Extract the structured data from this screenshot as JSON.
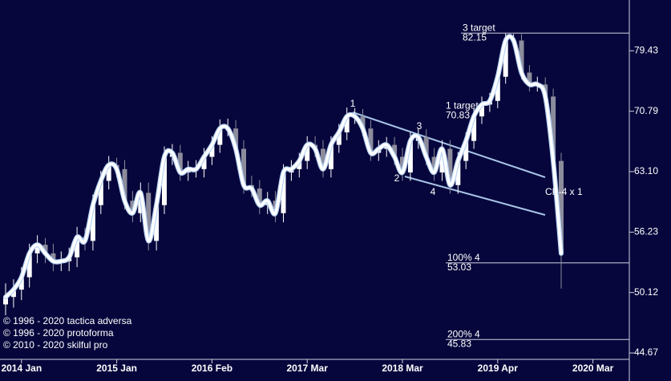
{
  "chart_data": {
    "type": "candlestick",
    "categories": [
      null,
      null,
      "2014 Jan",
      null,
      null,
      null,
      null,
      null,
      null,
      null,
      null,
      null,
      null,
      null,
      "2015 Jan",
      null,
      null,
      null,
      null,
      null,
      null,
      null,
      null,
      null,
      null,
      null,
      "2016 Feb",
      null,
      null,
      null,
      null,
      null,
      null,
      null,
      null,
      null,
      null,
      null,
      "2017 Mar",
      null,
      null,
      null,
      null,
      null,
      null,
      null,
      null,
      null,
      null,
      null,
      "2018 Mar",
      null,
      null,
      null,
      null,
      null,
      null,
      null,
      null,
      null,
      null,
      null,
      "2019 Apr",
      null,
      null,
      null,
      null,
      null,
      null,
      null,
      null,
      null,
      null,
      null,
      "2020 Mar",
      null,
      null
    ],
    "open": [
      49.0,
      49.7,
      50.4,
      51.6,
      54.0,
      54.9,
      54.0,
      53.2,
      53.2,
      53.6,
      55.7,
      55.3,
      59.2,
      62.0,
      63.9,
      63.4,
      59.7,
      58.3,
      60.6,
      55.3,
      59.2,
      64.9,
      65.4,
      63.0,
      63.4,
      63.4,
      64.9,
      66.4,
      68.5,
      68.5,
      65.9,
      61.5,
      61.1,
      59.2,
      59.7,
      58.3,
      63.0,
      63.4,
      64.4,
      66.4,
      65.9,
      63.4,
      66.4,
      68.0,
      70.1,
      70.1,
      68.5,
      65.4,
      65.9,
      66.4,
      64.9,
      63.0,
      66.9,
      67.4,
      64.9,
      63.0,
      65.9,
      61.5,
      64.4,
      66.9,
      70.1,
      71.7,
      72.2,
      75.6,
      81.0,
      81.0,
      76.2,
      74.5,
      74.5,
      72.8,
      64.4,
      null,
      null,
      null,
      null,
      null,
      null
    ],
    "high": [
      51.0,
      51.4,
      52.6,
      55.0,
      55.9,
      55.6,
      55.0,
      54.2,
      54.6,
      56.8,
      56.7,
      60.4,
      63.2,
      65.0,
      64.8,
      64.5,
      60.8,
      61.8,
      61.8,
      60.4,
      66.2,
      66.5,
      66.4,
      64.4,
      64.5,
      66.0,
      67.5,
      69.7,
      69.8,
      69.6,
      67.0,
      62.6,
      62.1,
      60.7,
      60.8,
      64.0,
      64.5,
      65.4,
      67.5,
      67.5,
      67.0,
      67.5,
      69.1,
      71.3,
      71.2,
      71.1,
      69.6,
      67.0,
      67.4,
      67.4,
      66.0,
      68.0,
      68.5,
      68.4,
      66.0,
      67.0,
      67.0,
      65.5,
      68.0,
      71.2,
      72.8,
      73.3,
      76.8,
      82.1,
      82.0,
      82.0,
      77.3,
      75.6,
      75.5,
      73.9,
      65.4,
      null,
      null,
      null,
      null,
      null,
      null
    ],
    "low": [
      48.0,
      48.7,
      49.4,
      50.6,
      53.0,
      53.0,
      52.2,
      52.2,
      52.2,
      52.6,
      54.3,
      54.3,
      58.2,
      61.0,
      62.4,
      58.7,
      57.3,
      57.3,
      54.3,
      54.3,
      58.2,
      63.9,
      62.0,
      62.0,
      62.4,
      62.4,
      63.9,
      65.4,
      67.5,
      64.9,
      60.5,
      60.1,
      58.2,
      58.2,
      57.3,
      57.3,
      62.0,
      62.4,
      63.4,
      64.9,
      62.4,
      62.4,
      65.4,
      67.0,
      69.1,
      67.5,
      64.4,
      64.4,
      64.9,
      63.9,
      62.0,
      62.0,
      65.9,
      63.9,
      62.0,
      62.0,
      60.5,
      60.5,
      63.4,
      65.9,
      69.1,
      70.7,
      71.2,
      74.6,
      80.0,
      75.2,
      73.5,
      73.5,
      71.8,
      63.4,
      50.5,
      null,
      null,
      null,
      null,
      null,
      null
    ],
    "close": [
      49.7,
      50.4,
      51.6,
      54.0,
      54.9,
      54.0,
      53.2,
      53.2,
      53.6,
      55.7,
      55.3,
      59.2,
      62.0,
      63.9,
      63.4,
      59.7,
      58.3,
      60.6,
      55.3,
      59.2,
      64.9,
      65.4,
      63.0,
      63.4,
      63.4,
      64.9,
      66.4,
      68.5,
      68.5,
      65.9,
      61.5,
      61.1,
      59.2,
      59.7,
      58.3,
      63.0,
      63.4,
      64.4,
      66.4,
      65.9,
      63.4,
      66.4,
      68.0,
      70.1,
      70.1,
      68.5,
      65.4,
      65.9,
      66.4,
      64.9,
      63.0,
      66.9,
      67.4,
      64.9,
      63.0,
      65.9,
      61.5,
      64.4,
      66.9,
      70.1,
      71.7,
      72.2,
      75.6,
      81.0,
      81.0,
      76.2,
      74.5,
      74.5,
      72.8,
      64.4,
      54.0,
      null,
      null,
      null,
      null,
      null,
      null
    ],
    "up_color": "#ffffff",
    "down_color": "#8c8c9c",
    "line": {
      "color": "#ffffff",
      "values": [
        49.7,
        50.4,
        51.6,
        54.0,
        54.9,
        54.0,
        53.2,
        53.2,
        53.6,
        55.7,
        55.3,
        59.2,
        62.0,
        63.9,
        63.4,
        59.7,
        58.3,
        60.6,
        55.3,
        59.2,
        64.9,
        65.4,
        63.0,
        63.4,
        63.4,
        64.9,
        66.4,
        68.5,
        68.5,
        65.9,
        61.5,
        61.1,
        59.2,
        59.7,
        58.3,
        63.0,
        63.4,
        64.4,
        66.4,
        65.9,
        63.4,
        66.4,
        68.0,
        70.1,
        70.1,
        68.5,
        65.4,
        65.9,
        66.4,
        64.9,
        63.0,
        66.9,
        67.4,
        64.9,
        63.0,
        65.9,
        61.5,
        64.4,
        66.9,
        70.1,
        71.7,
        72.2,
        75.6,
        81.0,
        81.0,
        76.2,
        74.5,
        74.5,
        72.8,
        64.4,
        54.0,
        null,
        null,
        null,
        null,
        null,
        null
      ]
    },
    "log_scale": true,
    "ylim": [
      44.13,
      87.5
    ],
    "yticks": [
      79.43,
      70.79,
      {
        "value": 63.1,
        "label": "63.10"
      },
      56.23,
      50.12,
      44.67
    ],
    "targets": [
      {
        "label": "3 target",
        "value": 82.15,
        "show_line": true
      },
      {
        "label": "1 target",
        "value": 70.83,
        "show_line": false
      },
      {
        "label": "100% 4",
        "value": 53.03,
        "show_line": true
      },
      {
        "label": "200% 4",
        "value": 45.83,
        "show_line": true
      }
    ],
    "wave_labels": [
      "1",
      "2",
      "3",
      "4"
    ],
    "annotation": "CP-4 x 1",
    "copyright": [
      "© 1996 - 2020 tactica adversa",
      "© 1996 - 2020 protoforma",
      "© 2010 - 2020 skilful pro"
    ]
  }
}
